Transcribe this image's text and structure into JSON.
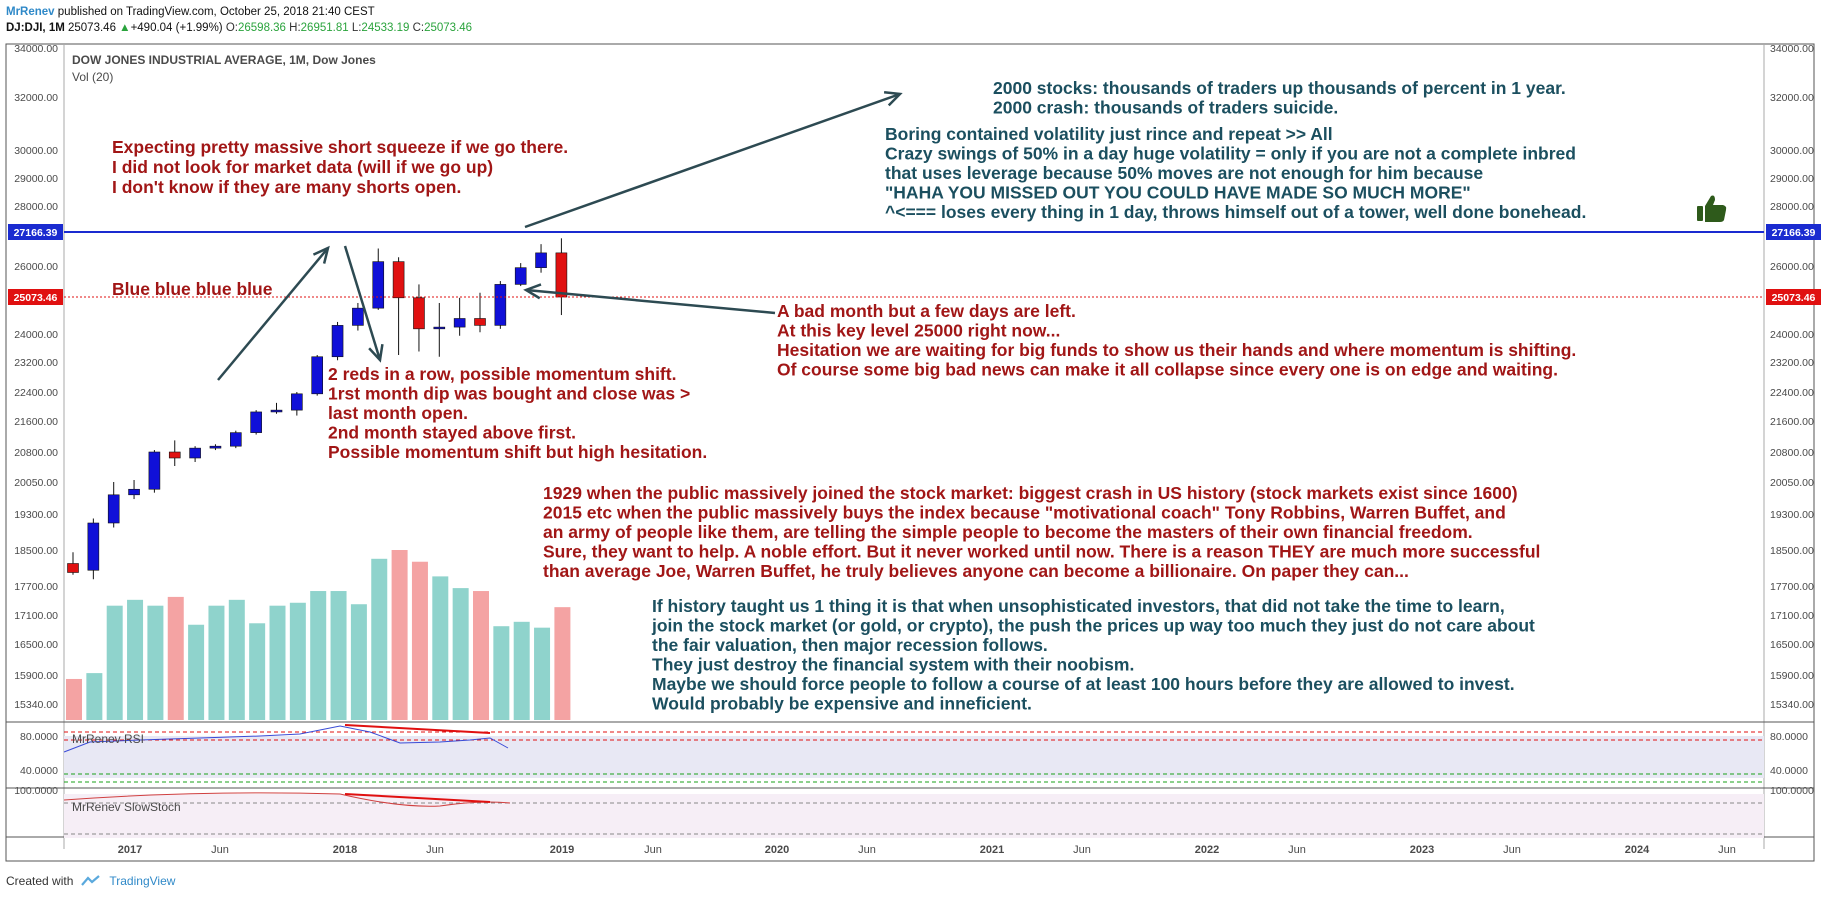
{
  "header": {
    "author": "MrRenev",
    "published": " published on TradingView.com, October 25, 2018 21:40 CEST",
    "symbol": "DJ:DJI, 1M",
    "last": "25073.46",
    "change": "+490.04 (+1.99%)",
    "o_label": "O:",
    "o": "26598.36",
    "h_label": "H:",
    "h": "26951.81",
    "l_label": "L:",
    "l": "24533.19",
    "c_label": "C:",
    "c": "25073.46"
  },
  "legend": {
    "title": "DOW JONES INDUSTRIAL AVERAGE, 1M, Dow Jones",
    "vol": "Vol (20)",
    "rsi": "MrRenev RSI",
    "stoch": "MrRenev SlowStoch"
  },
  "footer": {
    "created": "Created with",
    "brand": "TradingView"
  },
  "colors": {
    "up": "#1010d8",
    "down": "#e01010",
    "vol_up": "#8fd3cc",
    "vol_down": "#f4a3a3",
    "level_line": "#1a2bd0",
    "price_line": "#e01010"
  },
  "chart_data": {
    "type": "candlestick",
    "interval": "1M",
    "y_axis_ticks": [
      "34000.00",
      "32000.00",
      "30000.00",
      "29000.00",
      "28000.00",
      "26000.00",
      "24000.00",
      "23200.00",
      "22400.00",
      "21600.00",
      "20800.00",
      "20050.00",
      "19300.00",
      "18500.00",
      "17700.00",
      "17100.00",
      "16500.00",
      "15900.00",
      "15340.00"
    ],
    "x_axis_ticks": [
      "2017",
      "Jun",
      "2018",
      "Jun",
      "2019",
      "Jun",
      "2020",
      "Jun",
      "2021",
      "Jun",
      "2022",
      "Jun",
      "2023",
      "Jun",
      "2024",
      "Jun"
    ],
    "price_labels": {
      "level": "27166.39",
      "last": "25073.46"
    },
    "candles": [
      {
        "o": 18200,
        "h": 18450,
        "l": 17950,
        "c": 18000
      },
      {
        "o": 18050,
        "h": 19200,
        "l": 17850,
        "c": 19100
      },
      {
        "o": 19100,
        "h": 20050,
        "l": 19000,
        "c": 19750
      },
      {
        "o": 19750,
        "h": 20100,
        "l": 19650,
        "c": 19880
      },
      {
        "o": 19880,
        "h": 20850,
        "l": 19800,
        "c": 20800
      },
      {
        "o": 20800,
        "h": 21100,
        "l": 20450,
        "c": 20650
      },
      {
        "o": 20650,
        "h": 20950,
        "l": 20550,
        "c": 20900
      },
      {
        "o": 20900,
        "h": 21000,
        "l": 20850,
        "c": 20950
      },
      {
        "o": 20950,
        "h": 21350,
        "l": 20900,
        "c": 21300
      },
      {
        "o": 21300,
        "h": 21900,
        "l": 21250,
        "c": 21850
      },
      {
        "o": 21850,
        "h": 22100,
        "l": 21800,
        "c": 21900
      },
      {
        "o": 21900,
        "h": 22400,
        "l": 21750,
        "c": 22350
      },
      {
        "o": 22350,
        "h": 23400,
        "l": 22300,
        "c": 23350
      },
      {
        "o": 23350,
        "h": 24350,
        "l": 23250,
        "c": 24250
      },
      {
        "o": 24250,
        "h": 24900,
        "l": 24100,
        "c": 24750
      },
      {
        "o": 24750,
        "h": 26600,
        "l": 24700,
        "c": 26150
      },
      {
        "o": 26150,
        "h": 26300,
        "l": 23400,
        "c": 25050
      },
      {
        "o": 25050,
        "h": 25450,
        "l": 23500,
        "c": 24150
      },
      {
        "o": 24150,
        "h": 24900,
        "l": 23350,
        "c": 24200
      },
      {
        "o": 24200,
        "h": 25050,
        "l": 23950,
        "c": 24450
      },
      {
        "o": 24450,
        "h": 25200,
        "l": 24050,
        "c": 24250
      },
      {
        "o": 24250,
        "h": 25550,
        "l": 24150,
        "c": 25450
      },
      {
        "o": 25450,
        "h": 26100,
        "l": 25400,
        "c": 25950
      },
      {
        "o": 25950,
        "h": 26750,
        "l": 25800,
        "c": 26450
      },
      {
        "o": 26450,
        "h": 26950,
        "l": 24550,
        "c": 25073
      }
    ],
    "volume": [
      0.28,
      0.32,
      0.78,
      0.82,
      0.78,
      0.84,
      0.65,
      0.78,
      0.82,
      0.66,
      0.78,
      0.8,
      0.88,
      0.88,
      0.79,
      1.1,
      1.16,
      1.08,
      0.98,
      0.9,
      0.88,
      0.64,
      0.67,
      0.63,
      0.77
    ],
    "annotations": {
      "a1": [
        "Expecting pretty massive short squeeze if we go there.",
        "I did not look for market data (will if we go up)",
        "I don't know if they are many shorts open."
      ],
      "a2": [
        "Blue blue blue blue"
      ],
      "a3": [
        "2 reds in a row, possible momentum shift.",
        "1rst month dip was bought and close was >",
        "last month open.",
        "2nd month stayed above first.",
        "Possible momentum shift but high hesitation."
      ],
      "a4": [
        "2000 stocks: thousands of traders up thousands of percent in 1 year.",
        "2000 crash: thousands of traders suicide."
      ],
      "a5": [
        "Boring contained volatility just rince and repeat >> All",
        "Crazy swings of 50% in a day huge volatility = only if you are not a complete inbred",
        "that uses leverage because 50% moves are not enough for him because",
        "\"HAHA YOU MISSED OUT YOU COULD HAVE MADE SO MUCH MORE\"",
        "^<=== loses every thing in 1 day, throws himself out of a tower, well done bonehead."
      ],
      "a6": [
        "A bad month but a few days are left.",
        "At this key level 25000 right now...",
        "Hesitation we are waiting for big funds to show us their hands and where momentum is shifting.",
        "Of course some big bad news can make it all collapse since every one is on edge and waiting."
      ],
      "a7": [
        "1929 when the public massively joined the stock market: biggest crash in US history (stock markets exist since 1600)",
        "2015 etc when the public massively buys the index because \"motivational coach\" Tony Robbins, Warren Buffet, and",
        "an army of people like them, are telling the simple people to become the masters of their own financial freedom.",
        "Sure, they want to help. A noble effort. But it never worked until now. There is a reason THEY are much more successful",
        "than average Joe, Warren Buffet, he truly believes anyone can become a billionaire. On paper they can..."
      ],
      "a8": [
        "If history taught us 1 thing it is that when unsophisticated investors, that did not take the time to learn,",
        "join the stock market (or gold, or crypto), the push the prices up way too much they just do not care about",
        "the fair valuation, then major recession follows.",
        "They just destroy the financial system with their noobism.",
        "Maybe we should force people to follow a course of at least 100 hours before they are allowed to invest.",
        "Would probably be expensive and inneficient."
      ]
    },
    "rsi": {
      "ticks": [
        "80.0000",
        "40.0000"
      ]
    },
    "stoch": {
      "ticks": [
        "100.0000"
      ]
    }
  }
}
